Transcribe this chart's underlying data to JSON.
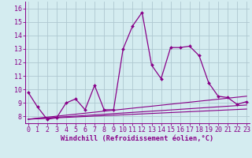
{
  "xlabel": "Windchill (Refroidissement éolien,°C)",
  "background_color": "#d4ecf0",
  "grid_color": "#aec8d0",
  "line_color": "#880088",
  "x_data": [
    0,
    1,
    2,
    3,
    4,
    5,
    6,
    7,
    8,
    9,
    10,
    11,
    12,
    13,
    14,
    15,
    16,
    17,
    18,
    19,
    20,
    21,
    22,
    23
  ],
  "series1": [
    9.8,
    8.7,
    7.8,
    7.9,
    9.0,
    9.3,
    8.5,
    10.3,
    8.5,
    8.5,
    13.0,
    14.7,
    15.7,
    11.8,
    10.8,
    13.1,
    13.1,
    13.2,
    12.5,
    10.5,
    9.5,
    9.4,
    8.9,
    9.1
  ],
  "line2": [
    [
      0,
      23
    ],
    [
      7.8,
      9.5
    ]
  ],
  "line3": [
    [
      0,
      23
    ],
    [
      7.8,
      8.85
    ]
  ],
  "line4": [
    [
      0,
      23
    ],
    [
      7.8,
      8.55
    ]
  ],
  "ylim": [
    7.5,
    16.5
  ],
  "xlim": [
    -0.3,
    23.3
  ],
  "yticks": [
    8,
    9,
    10,
    11,
    12,
    13,
    14,
    15,
    16
  ],
  "xticks": [
    0,
    1,
    2,
    3,
    4,
    5,
    6,
    7,
    8,
    9,
    10,
    11,
    12,
    13,
    14,
    15,
    16,
    17,
    18,
    19,
    20,
    21,
    22,
    23
  ],
  "tick_fontsize": 6.0,
  "xlabel_fontsize": 6.2
}
